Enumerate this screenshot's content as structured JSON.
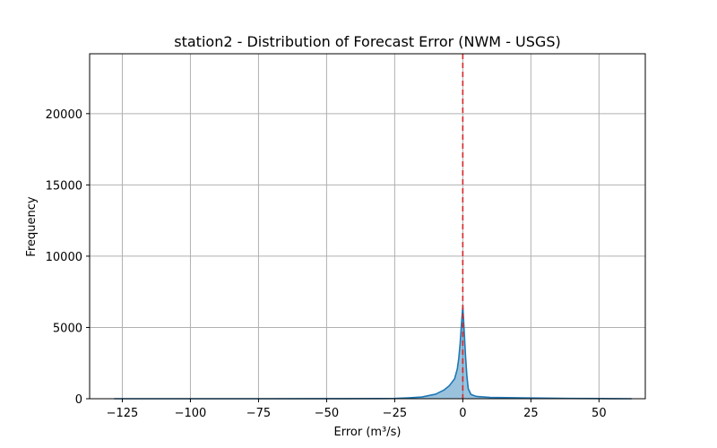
{
  "chart_data": {
    "type": "area",
    "title": "station2 - Distribution of Forecast Error (NWM - USGS)",
    "xlabel": "Error (m³/s)",
    "ylabel": "Frequency",
    "xlim": [
      -137,
      67
    ],
    "ylim": [
      0,
      24200
    ],
    "x_ticks": [
      -125,
      -100,
      -75,
      -50,
      -25,
      0,
      25,
      50
    ],
    "x_tick_labels": [
      "−125",
      "−100",
      "−75",
      "−50",
      "−25",
      "0",
      "25",
      "50"
    ],
    "y_ticks": [
      0,
      5000,
      10000,
      15000,
      20000
    ],
    "y_tick_labels": [
      "0",
      "5000",
      "10000",
      "15000",
      "20000"
    ],
    "grid": true,
    "reference_line": {
      "x": 0,
      "color": "#d62728",
      "style": "dashed"
    },
    "series": [
      {
        "color": "#1f77b4",
        "fill_color": "#1f77b4",
        "x": [
          -128,
          -100,
          -75,
          -50,
          -30,
          -25,
          -20,
          -15,
          -10,
          -7,
          -5,
          -3,
          -2,
          -1.5,
          -1,
          -0.5,
          0,
          0.5,
          1,
          1.5,
          2,
          3,
          5,
          10,
          25,
          40,
          50,
          55,
          62
        ],
        "y": [
          0,
          0,
          0,
          5,
          10,
          20,
          60,
          120,
          320,
          600,
          900,
          1400,
          2100,
          2800,
          3800,
          5200,
          6500,
          4800,
          3000,
          1600,
          700,
          300,
          160,
          90,
          50,
          20,
          10,
          5,
          0
        ]
      }
    ]
  }
}
